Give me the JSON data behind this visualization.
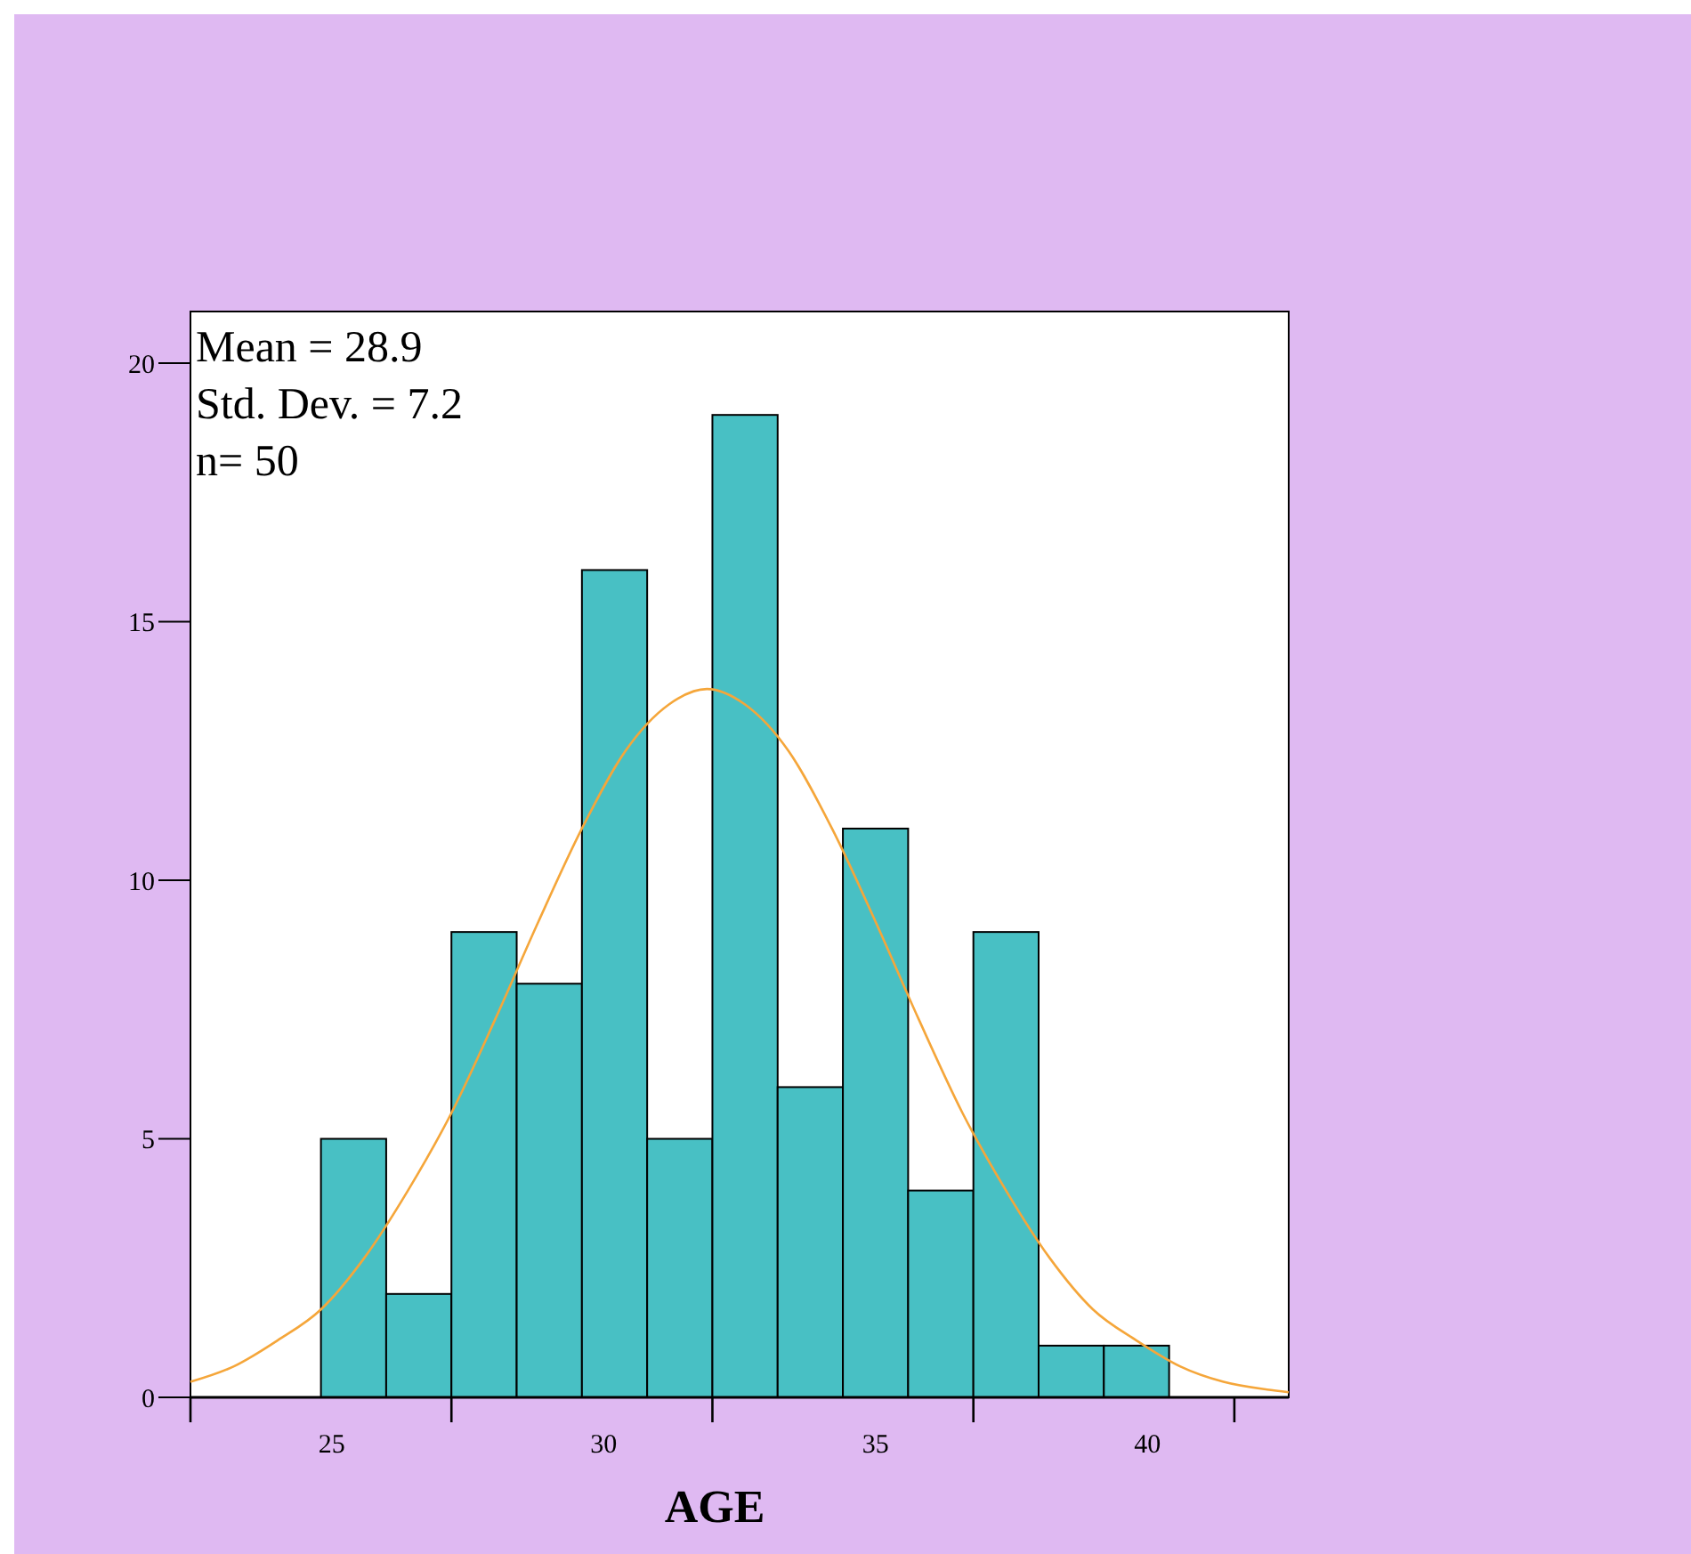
{
  "chart_data": {
    "type": "histogram",
    "xlabel": "AGE",
    "bins": [
      24.8,
      26,
      27.2,
      28.4,
      29.6,
      30.8,
      32,
      33.2,
      34.4,
      35.6,
      36.8,
      38,
      39.2,
      40.4
    ],
    "series": [
      {
        "color": "#48c0c4",
        "values": [
          5,
          2,
          9,
          8,
          16,
          5,
          19,
          6,
          11,
          4,
          9,
          1,
          1
        ]
      },
      {
        "type": "line",
        "color": "#f5a63a",
        "x": [
          22.4,
          23.2,
          24,
          24.8,
          25.6,
          26.4,
          27.2,
          28,
          28.8,
          29.6,
          30.4,
          31.2,
          31.9,
          32.6,
          33.4,
          34.2,
          35,
          35.8,
          36.6,
          37.4,
          38.2,
          39,
          39.8,
          40.6,
          41.4,
          42.2,
          42.6
        ],
        "values": [
          0.3,
          0.6,
          1.1,
          1.7,
          2.7,
          4,
          5.5,
          7.3,
          9.2,
          11,
          12.5,
          13.4,
          13.7,
          13.4,
          12.5,
          11,
          9.2,
          7.3,
          5.5,
          4,
          2.7,
          1.7,
          1.1,
          0.6,
          0.3,
          0.15,
          0.1
        ]
      }
    ],
    "xlim": [
      22.4,
      42.6
    ],
    "xticks": [
      {
        "value": 22.4,
        "label": null
      },
      25,
      {
        "value": 27.2,
        "label": null
      },
      30,
      {
        "value": 32,
        "label": null
      },
      35,
      {
        "value": 36.8,
        "label": null
      },
      40,
      {
        "value": 41.6,
        "label": null
      }
    ],
    "ylim": [
      0,
      21
    ],
    "yticks": [
      0,
      5,
      10,
      15,
      20
    ],
    "annotations": [
      "Mean = 28.9",
      "Std. Dev. = 7.2",
      "n= 50"
    ]
  }
}
